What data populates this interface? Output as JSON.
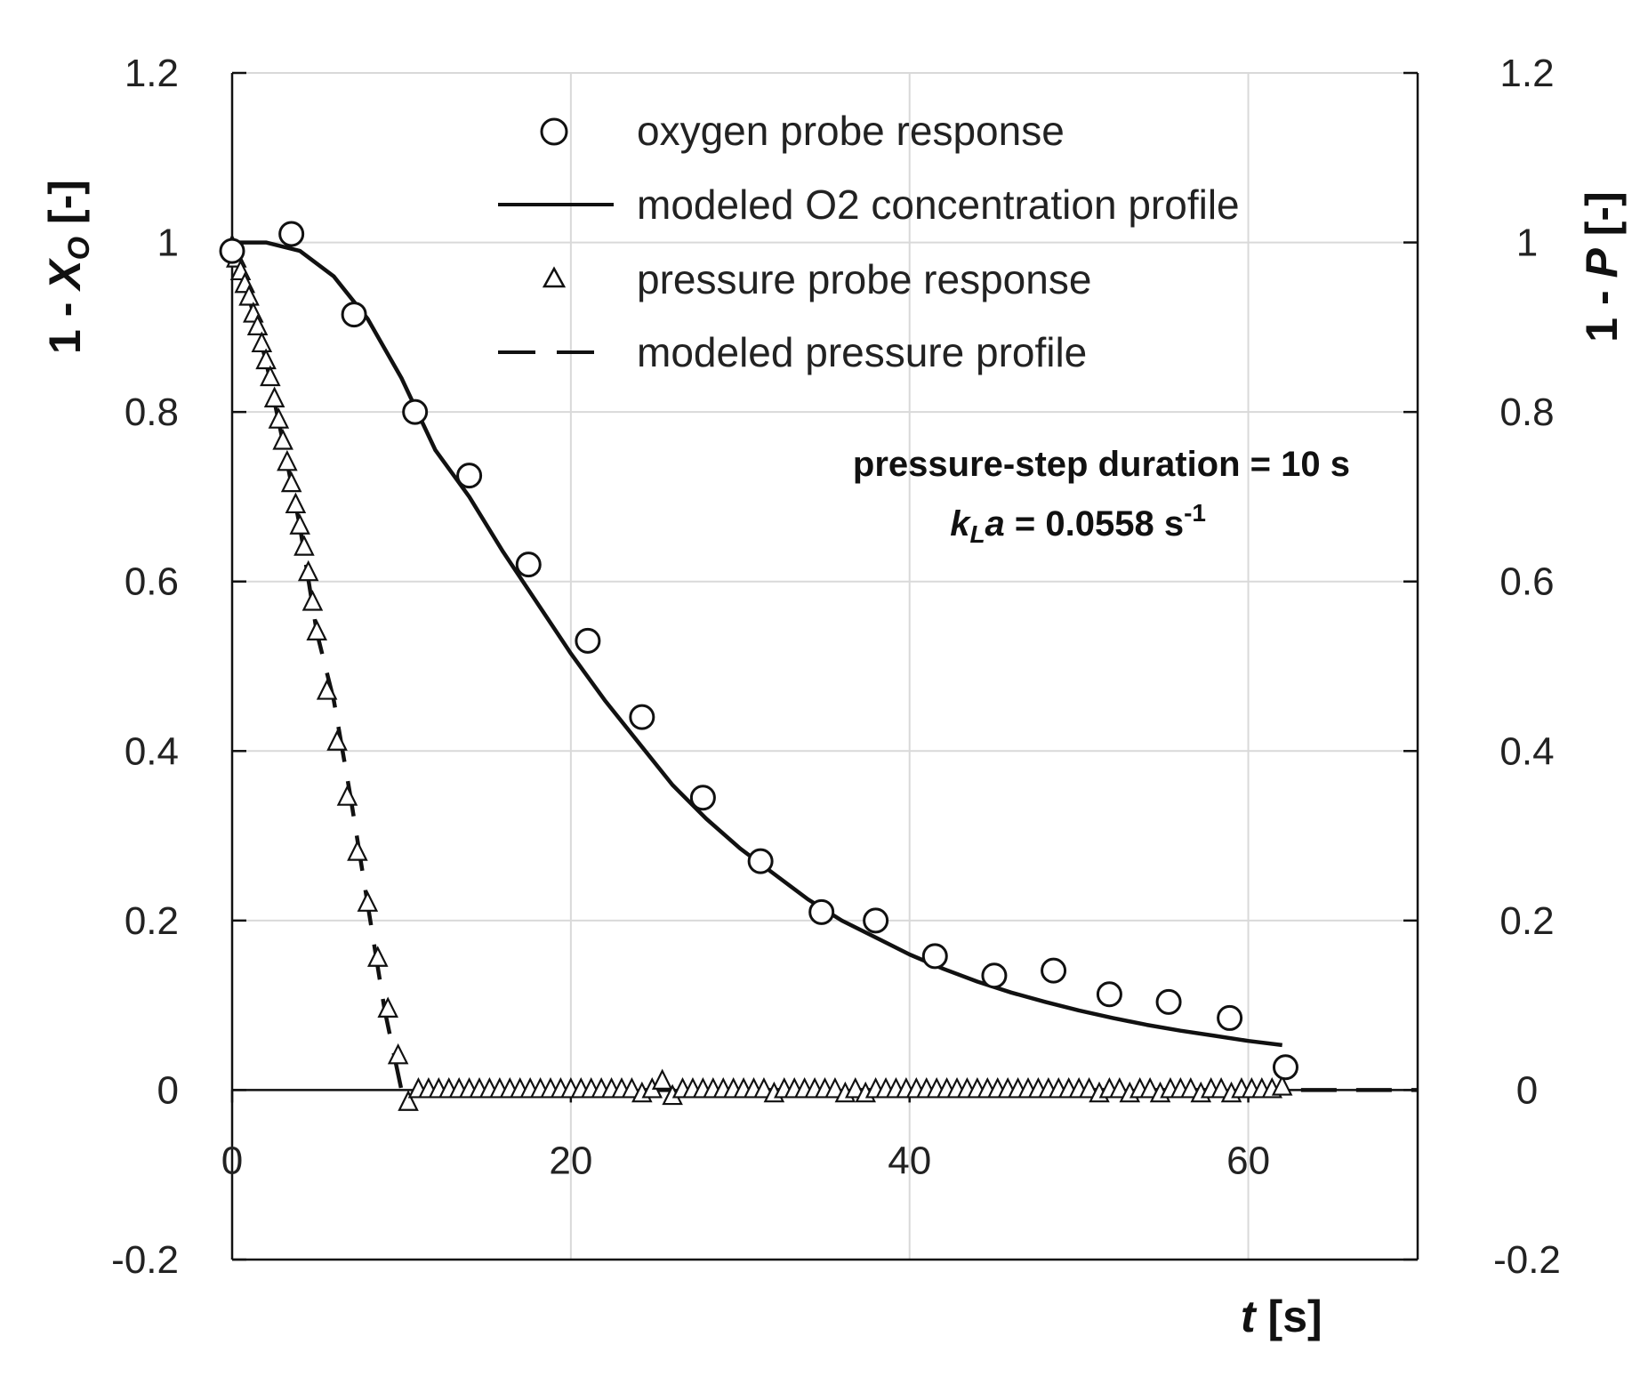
{
  "chart_data": {
    "type": "scatter",
    "xlabel": {
      "italic": "t",
      "rest": " [s]"
    },
    "ylabel_left": {
      "prefix": "1 - ",
      "italic": "X",
      "sub": "O",
      "suffix": " [-]"
    },
    "ylabel_right": {
      "prefix": "1 - ",
      "italic": "P",
      "suffix": " [-]"
    },
    "xlim": [
      0,
      70
    ],
    "ylim": [
      -0.2,
      1.2
    ],
    "xticks": [
      "0",
      "20",
      "40",
      "60"
    ],
    "xtick_values": [
      0,
      20,
      40,
      60
    ],
    "yticks": [
      "-0.2",
      "0",
      "0.2",
      "0.4",
      "0.6",
      "0.8",
      "1",
      "1.2"
    ],
    "ytick_values": [
      -0.2,
      0,
      0.2,
      0.4,
      0.6,
      0.8,
      1,
      1.2
    ],
    "grid": true,
    "legend": {
      "position": "top",
      "entries": [
        "oxygen probe response",
        "modeled O2 concentration profile",
        "pressure probe response",
        "modeled pressure profile"
      ]
    },
    "annotation": {
      "line1": "pressure-step duration = 10 s",
      "line2_k": "k",
      "line2_sub": "L",
      "line2_a": "a",
      "line2_rest": " = 0.0558 s",
      "line2_sup": "-1"
    },
    "series": [
      {
        "name": "oxygen probe response",
        "marker": "circle",
        "x": [
          0,
          3.5,
          7.2,
          10.8,
          14.0,
          17.5,
          21.0,
          24.2,
          27.8,
          31.2,
          34.8,
          38.0,
          41.5,
          45.0,
          48.5,
          51.8,
          55.3,
          58.9,
          62.2
        ],
        "y": [
          0.99,
          1.01,
          0.915,
          0.8,
          0.725,
          0.62,
          0.53,
          0.44,
          0.345,
          0.27,
          0.21,
          0.2,
          0.158,
          0.135,
          0.141,
          0.113,
          0.104,
          0.085,
          0.027
        ]
      },
      {
        "name": "modeled O2 concentration profile",
        "line": "solid",
        "x": [
          0,
          2,
          4,
          6,
          8,
          10,
          12,
          14,
          16,
          18,
          20,
          22,
          24,
          26,
          28,
          30,
          32,
          34,
          36,
          38,
          40,
          42,
          44,
          46,
          48,
          50,
          52,
          54,
          56,
          58,
          60,
          62
        ],
        "y": [
          1.0,
          1.0,
          0.99,
          0.96,
          0.91,
          0.84,
          0.755,
          0.7,
          0.635,
          0.575,
          0.515,
          0.46,
          0.41,
          0.36,
          0.32,
          0.285,
          0.255,
          0.225,
          0.2,
          0.18,
          0.16,
          0.143,
          0.128,
          0.115,
          0.104,
          0.094,
          0.085,
          0.077,
          0.07,
          0.064,
          0.058,
          0.053
        ]
      },
      {
        "name": "pressure probe response",
        "marker": "triangle",
        "x": [
          0,
          0.25,
          0.5,
          0.75,
          1.0,
          1.25,
          1.5,
          1.75,
          2.0,
          2.25,
          2.5,
          2.75,
          3.0,
          3.25,
          3.5,
          3.75,
          4.0,
          4.25,
          4.5,
          4.75,
          5.0,
          5.6,
          6.2,
          6.8,
          7.4,
          8.0,
          8.6,
          9.2,
          9.8,
          10.4,
          11.0,
          11.6,
          12.2,
          12.8,
          13.4,
          14.0,
          14.6,
          15.2,
          15.8,
          16.4,
          17.0,
          17.6,
          18.2,
          18.8,
          19.4,
          20.0,
          20.6,
          21.2,
          21.8,
          22.4,
          23.0,
          23.6,
          24.2,
          24.8,
          25.4,
          26.0,
          26.6,
          27.2,
          27.8,
          28.4,
          29.0,
          29.6,
          30.2,
          30.8,
          31.4,
          32.0,
          32.6,
          33.2,
          33.8,
          34.4,
          35.0,
          35.6,
          36.2,
          36.8,
          37.4,
          38.0,
          38.6,
          39.2,
          39.8,
          40.4,
          41.0,
          41.6,
          42.2,
          42.8,
          43.4,
          44.0,
          44.6,
          45.2,
          45.8,
          46.4,
          47.0,
          47.6,
          48.2,
          48.8,
          49.4,
          50.0,
          50.6,
          51.2,
          51.8,
          52.4,
          53.0,
          53.6,
          54.2,
          54.8,
          55.4,
          56.0,
          56.6,
          57.2,
          57.8,
          58.4,
          59.0,
          59.6,
          60.2,
          60.8,
          61.4,
          62.0
        ],
        "y": [
          0.995,
          0.98,
          0.965,
          0.95,
          0.935,
          0.915,
          0.9,
          0.88,
          0.86,
          0.84,
          0.815,
          0.79,
          0.765,
          0.74,
          0.715,
          0.69,
          0.665,
          0.64,
          0.61,
          0.575,
          0.54,
          0.47,
          0.41,
          0.345,
          0.28,
          0.22,
          0.155,
          0.095,
          0.04,
          -0.015,
          0.0,
          0.0,
          0.0,
          0.0,
          0.0,
          0.0,
          0.0,
          0.0,
          0.0,
          0.0,
          0.0,
          0.0,
          0.0,
          0.0,
          0.0,
          0.0,
          0.0,
          0.0,
          0.0,
          0.0,
          0.0,
          0.0,
          -0.005,
          0.0,
          0.01,
          -0.008,
          0.0,
          0.0,
          0.0,
          0.0,
          0.0,
          0.0,
          0.0,
          0.0,
          0.0,
          -0.005,
          0.0,
          0.0,
          0.0,
          0.0,
          0.0,
          0.0,
          -0.005,
          0.0,
          -0.005,
          0.0,
          0.0,
          0.0,
          0.0,
          0.0,
          0.0,
          0.0,
          0.0,
          0.0,
          0.0,
          0.0,
          0.0,
          0.0,
          0.0,
          0.0,
          0.0,
          0.0,
          0.0,
          0.0,
          0.0,
          0.0,
          0.0,
          -0.005,
          0.0,
          0.0,
          -0.005,
          0.0,
          0.0,
          -0.005,
          0.0,
          0.0,
          0.0,
          -0.005,
          0.0,
          0.0,
          -0.005,
          0.0,
          0.0,
          0.0,
          0.0,
          0.003
        ]
      },
      {
        "name": "modeled pressure profile",
        "line": "dashed",
        "x": [
          0,
          1,
          2,
          3,
          4,
          5,
          6,
          7,
          8,
          9,
          10,
          10.5,
          20,
          30,
          40,
          50,
          60,
          70
        ],
        "y": [
          1.0,
          0.935,
          0.86,
          0.765,
          0.665,
          0.54,
          0.46,
          0.345,
          0.22,
          0.095,
          0.0,
          0.0,
          0.0,
          0.0,
          0.0,
          0.0,
          0.0,
          0.0
        ]
      }
    ]
  }
}
